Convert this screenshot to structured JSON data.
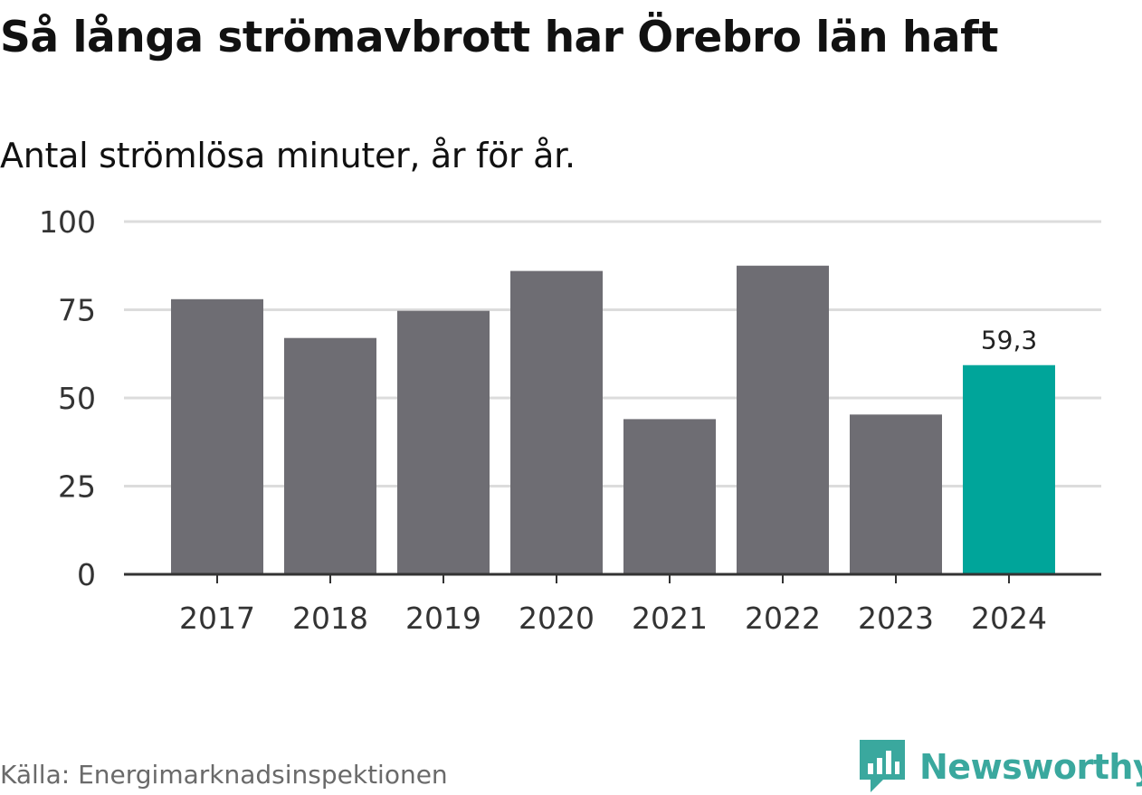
{
  "title": "Så långa strömavbrott har Örebro län haft",
  "subtitle": "Antal strömlösa minuter, år för år.",
  "source": "Källa: Energimarknadsinspektionen",
  "brand": {
    "name": "Newsworthy",
    "icon": "newsworthy-logo-icon",
    "color": "#3aa89e"
  },
  "colors": {
    "bar": "#6e6d73",
    "highlight": "#00a59a",
    "grid": "#dcdcdc",
    "axis": "#333333"
  },
  "chart_data": {
    "type": "bar",
    "title": "Så långa strömavbrott har Örebro län haft",
    "subtitle": "Antal strömlösa minuter, år för år.",
    "xlabel": "",
    "ylabel": "",
    "categories": [
      "2017",
      "2018",
      "2019",
      "2020",
      "2021",
      "2022",
      "2023",
      "2024"
    ],
    "values": [
      78,
      67,
      74.7,
      86,
      44,
      87.5,
      45.3,
      59.3
    ],
    "highlight_index": 7,
    "data_labels": [
      {
        "index": 7,
        "text": "59,3"
      }
    ],
    "ylim": [
      0,
      100
    ],
    "yticks": [
      0,
      25,
      50,
      75,
      100
    ],
    "grid": true,
    "legend": "none"
  }
}
